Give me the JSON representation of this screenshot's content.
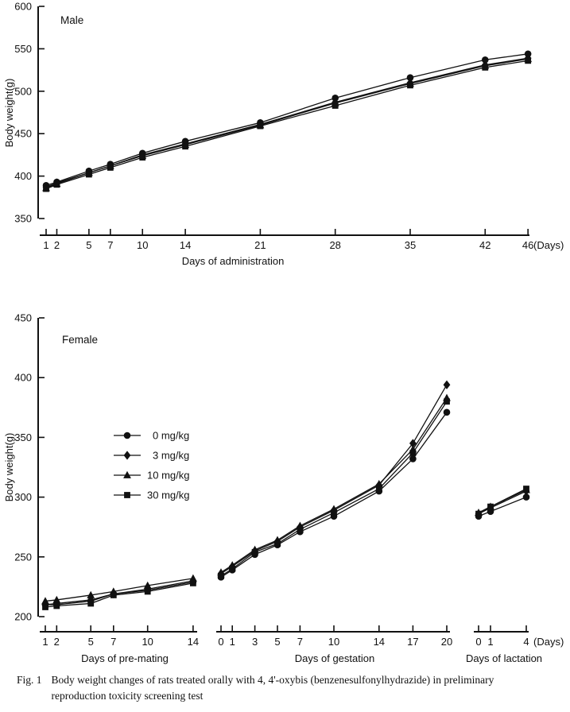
{
  "figure": {
    "caption_label": "Fig. 1",
    "caption_text": "Body weight changes of rats treated orally with 4, 4'-oxybis (benzenesulfonylhydrazide) in preliminary reproduction toxicity screening test"
  },
  "colors": {
    "ink": "#111111",
    "background": "#ffffff"
  },
  "legend": {
    "items": [
      {
        "marker": "circle",
        "label": "0 mg/kg"
      },
      {
        "marker": "diamond",
        "label": "3 mg/kg"
      },
      {
        "marker": "triangle",
        "label": "10 mg/kg"
      },
      {
        "marker": "square",
        "label": "30 mg/kg"
      }
    ]
  },
  "chart_data": [
    {
      "type": "line",
      "title": "Male",
      "xlabel": "Days of administration",
      "ylabel": "Body weight(g)",
      "x_axis_unit": "(Days)",
      "ylim": [
        350,
        600
      ],
      "yticks": [
        350,
        400,
        450,
        500,
        550,
        600
      ],
      "x": [
        1,
        2,
        5,
        7,
        10,
        14,
        21,
        28,
        35,
        42,
        46
      ],
      "series": [
        {
          "name": "0 mg/kg",
          "marker": "circle",
          "values": [
            389,
            393,
            406,
            414,
            427,
            441,
            463,
            492,
            516,
            537,
            544
          ]
        },
        {
          "name": "3 mg/kg",
          "marker": "diamond",
          "values": [
            387,
            392,
            404,
            412,
            425,
            438,
            461,
            487,
            510,
            531,
            539
          ]
        },
        {
          "name": "10 mg/kg",
          "marker": "triangle",
          "values": [
            386,
            391,
            404,
            412,
            424,
            437,
            460,
            486,
            509,
            530,
            538
          ]
        },
        {
          "name": "30 mg/kg",
          "marker": "square",
          "values": [
            385,
            390,
            402,
            410,
            422,
            435,
            459,
            483,
            507,
            528,
            536
          ]
        }
      ]
    },
    {
      "type": "line",
      "title": "Female",
      "ylabel": "Body weight(g)",
      "x_axis_unit": "(Days)",
      "ylim": [
        200,
        450
      ],
      "yticks": [
        200,
        250,
        300,
        350,
        400,
        450
      ],
      "legend_position": "upper-left",
      "segments": [
        {
          "xlabel": "Days of pre-mating",
          "x": [
            1,
            2,
            5,
            7,
            10,
            14
          ],
          "series": [
            {
              "name": "0 mg/kg",
              "marker": "circle",
              "values": [
                210,
                210,
                213,
                219,
                222,
                229
              ]
            },
            {
              "name": "3 mg/kg",
              "marker": "diamond",
              "values": [
                210,
                211,
                214,
                219,
                223,
                230
              ]
            },
            {
              "name": "10 mg/kg",
              "marker": "triangle",
              "values": [
                213,
                214,
                218,
                221,
                226,
                232
              ]
            },
            {
              "name": "30 mg/kg",
              "marker": "square",
              "values": [
                208,
                209,
                211,
                218,
                221,
                228
              ]
            }
          ]
        },
        {
          "xlabel": "Days of gestation",
          "x": [
            0,
            1,
            3,
            5,
            7,
            10,
            14,
            17,
            20
          ],
          "series": [
            {
              "name": "0 mg/kg",
              "marker": "circle",
              "values": [
                233,
                239,
                252,
                260,
                271,
                284,
                305,
                332,
                371
              ]
            },
            {
              "name": "3 mg/kg",
              "marker": "diamond",
              "values": [
                236,
                242,
                255,
                263,
                275,
                289,
                310,
                345,
                394
              ]
            },
            {
              "name": "10 mg/kg",
              "marker": "triangle",
              "values": [
                237,
                243,
                256,
                264,
                276,
                290,
                311,
                340,
                383
              ]
            },
            {
              "name": "30 mg/kg",
              "marker": "square",
              "values": [
                234,
                240,
                254,
                261,
                273,
                287,
                307,
                337,
                380
              ]
            }
          ]
        },
        {
          "xlabel": "Days of lactation",
          "x": [
            0,
            1,
            4
          ],
          "series": [
            {
              "name": "0 mg/kg",
              "marker": "circle",
              "values": [
                284,
                288,
                300
              ]
            },
            {
              "name": "3 mg/kg",
              "marker": "diamond",
              "values": [
                286,
                291,
                305
              ]
            },
            {
              "name": "10 mg/kg",
              "marker": "triangle",
              "values": [
                287,
                292,
                306
              ]
            },
            {
              "name": "30 mg/kg",
              "marker": "square",
              "values": [
                286,
                292,
                307
              ]
            }
          ]
        }
      ]
    }
  ]
}
